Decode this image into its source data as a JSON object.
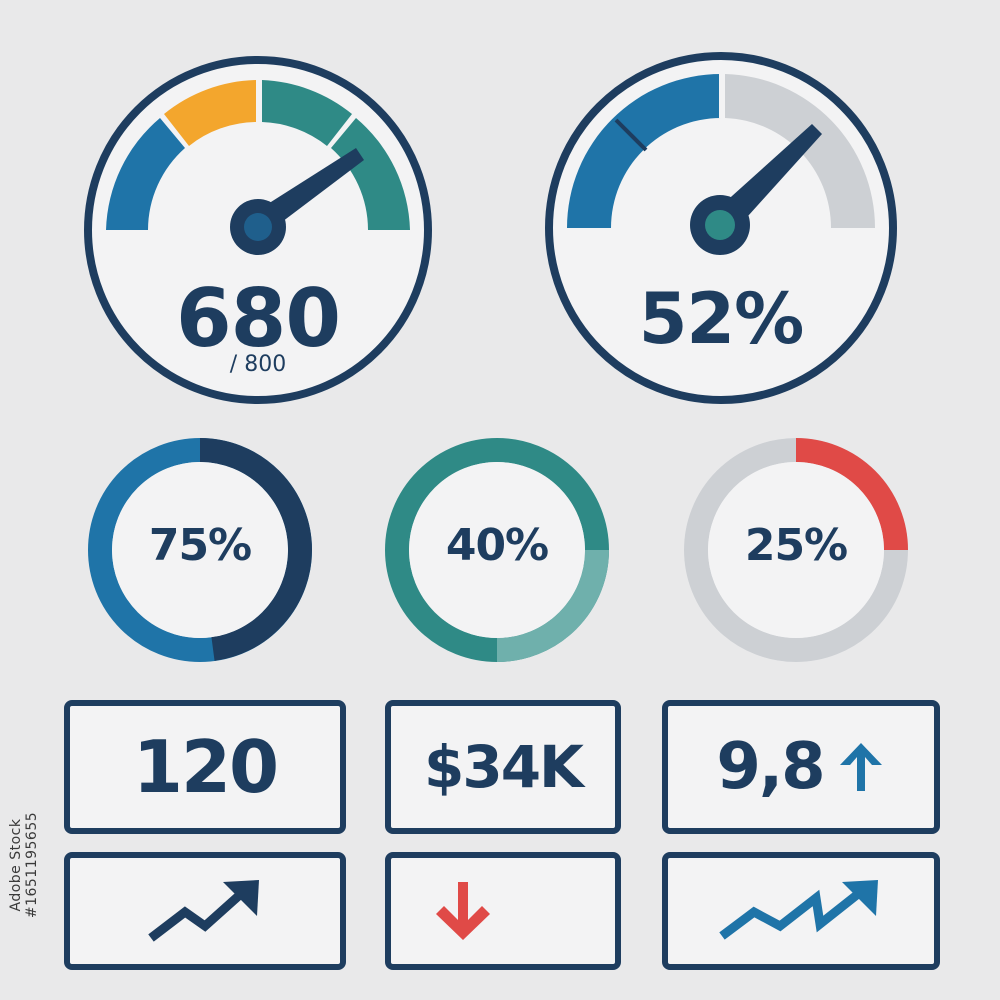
{
  "gauges": [
    {
      "value_text": "680",
      "sub_text": "/ 800",
      "value": 680,
      "max": 800
    },
    {
      "value_text": "52%",
      "value": 52,
      "max": 100
    }
  ],
  "rings": [
    {
      "label": "75%",
      "value": 75
    },
    {
      "label": "40%",
      "value": 40
    },
    {
      "label": "25%",
      "value": 25
    }
  ],
  "kpis": [
    {
      "value": "120"
    },
    {
      "value": "$34K"
    },
    {
      "value": "9,8",
      "icon": "arrow-up-icon"
    }
  ],
  "trend_icons": [
    "trend-up-icon",
    "arrow-down-icon",
    "trend-up-icon"
  ],
  "stock_id": "1651195655",
  "site": "Adobe Stock",
  "colors": {
    "navy": "#1e3d5f",
    "blue": "#1f74a8",
    "teal": "#2f8a86",
    "light_teal": "#6fb0ac",
    "orange": "#f3a62d",
    "red": "#e04a47",
    "gray": "#cdd0d4",
    "panel": "#f3f3f4"
  }
}
